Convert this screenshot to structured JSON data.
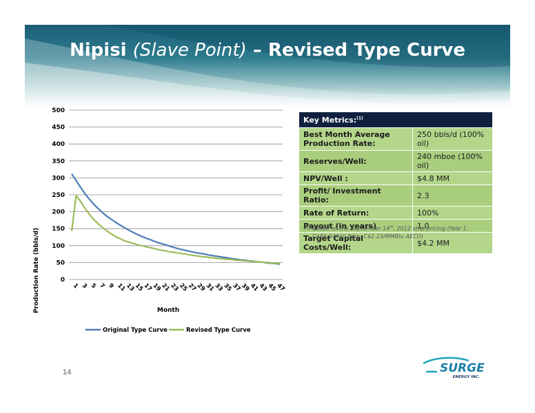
{
  "slide": {
    "title_main": "Nipisi ",
    "title_italic": "(Slave Point)",
    "title_rest": " – Revised Type Curve",
    "page_number": "14"
  },
  "metrics": {
    "header": "Key Metrics:",
    "header_note": "(1)",
    "rows": [
      {
        "label": "Best Month Average Production Rate:",
        "value": "250 bbls/d (100% oil)"
      },
      {
        "label": "Reserves/Well:",
        "value": "240 mboe (100% oil)"
      },
      {
        "label": "NPV/Well :",
        "value": "$4.8 MM"
      },
      {
        "label": "Profit/ Investment Ratio:",
        "value": "2.3"
      },
      {
        "label": "Rate of Return:",
        "value": "100%"
      },
      {
        "label": "Payout (in years)",
        "value": "1.0"
      },
      {
        "label": "Target Capital Costs/Well:",
        "value": "$4.2 MM"
      }
    ]
  },
  "footnote": {
    "number": "(1)",
    "text_a": "Based on the September 14",
    "text_sup": "th",
    "text_b": ", 2012 strip pricing (Year 1: C$88.54/bbl Edm; C$2.23/MMBtu AECO)"
  },
  "logo": {
    "name": "SURGE",
    "subtitle": "ENERGY INC."
  },
  "colors": {
    "original": "#4a7bb7",
    "revised": "#9bbb59",
    "header": "#10213f",
    "metric_row": "#b3d68a"
  },
  "chart_data": {
    "type": "line",
    "title": "",
    "xlabel": "Month",
    "ylabel": "Production Rate (bbls/d)",
    "ylim": [
      0,
      500
    ],
    "yticks": [
      0,
      50,
      100,
      150,
      200,
      250,
      300,
      350,
      400,
      450,
      500
    ],
    "x": [
      1,
      2,
      3,
      4,
      5,
      6,
      7,
      8,
      9,
      10,
      11,
      12,
      13,
      14,
      15,
      16,
      17,
      18,
      19,
      20,
      21,
      22,
      23,
      24,
      25,
      26,
      27,
      28,
      29,
      30,
      31,
      32,
      33,
      34,
      35,
      36,
      37,
      38,
      39,
      40,
      41,
      42,
      43,
      44,
      45,
      46,
      47,
      48
    ],
    "xtick_labels": [
      "1",
      "3",
      "5",
      "7",
      "9",
      "11",
      "13",
      "15",
      "17",
      "19",
      "21",
      "23",
      "25",
      "27",
      "29",
      "31",
      "33",
      "35",
      "37",
      "39",
      "41",
      "43",
      "45",
      "47"
    ],
    "grid": true,
    "legend": "bottom",
    "series": [
      {
        "name": "Original Type Curve",
        "values": [
          312,
          292,
          272,
          253,
          237,
          222,
          209,
          197,
          186,
          177,
          168,
          160,
          152,
          145,
          138,
          132,
          126,
          121,
          116,
          111,
          107,
          103,
          99,
          95,
          91,
          88,
          85,
          82,
          79,
          77,
          75,
          72,
          70,
          68,
          66,
          64,
          62,
          60,
          58,
          57,
          55,
          54,
          52,
          51,
          49,
          48,
          47,
          45
        ]
      },
      {
        "name": "Revised Type Curve",
        "values": [
          143,
          248,
          230,
          210,
          192,
          177,
          164,
          153,
          143,
          134,
          126,
          120,
          114,
          110,
          106,
          102,
          99,
          96,
          93,
          90,
          87,
          85,
          82,
          80,
          78,
          76,
          74,
          72,
          70,
          68,
          67,
          65,
          64,
          62,
          61,
          60,
          59,
          57,
          56,
          55,
          54,
          53,
          52,
          51,
          50,
          49,
          48,
          47
        ]
      }
    ]
  }
}
